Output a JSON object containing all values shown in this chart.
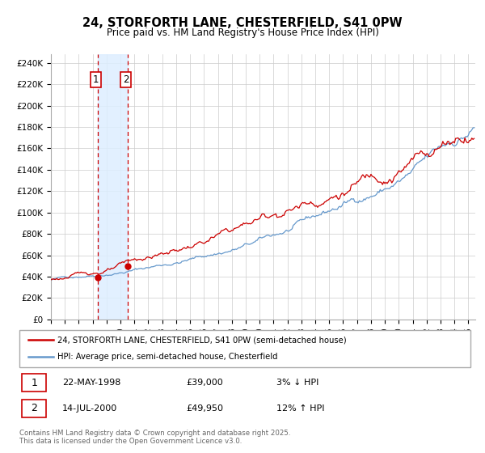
{
  "title": "24, STORFORTH LANE, CHESTERFIELD, S41 0PW",
  "subtitle": "Price paid vs. HM Land Registry's House Price Index (HPI)",
  "yticks": [
    0,
    20000,
    40000,
    60000,
    80000,
    100000,
    120000,
    140000,
    160000,
    180000,
    200000,
    220000,
    240000
  ],
  "ytick_labels": [
    "£0",
    "£20K",
    "£40K",
    "£60K",
    "£80K",
    "£100K",
    "£120K",
    "£140K",
    "£160K",
    "£180K",
    "£200K",
    "£220K",
    "£240K"
  ],
  "xmin": 1995.0,
  "xmax": 2025.5,
  "ymin": 0,
  "ymax": 248000,
  "transaction1_date": 1998.38,
  "transaction1_price": 39000,
  "transaction2_date": 2000.53,
  "transaction2_price": 49950,
  "shaded_region_start": 1998.38,
  "shaded_region_end": 2000.53,
  "red_line_color": "#cc0000",
  "blue_line_color": "#6699cc",
  "shaded_color": "#ddeeff",
  "dashed_line_color": "#cc0000",
  "grid_color": "#cccccc",
  "legend_line1": "24, STORFORTH LANE, CHESTERFIELD, S41 0PW (semi-detached house)",
  "legend_line2": "HPI: Average price, semi-detached house, Chesterfield",
  "table_row1_num": "1",
  "table_row1_date": "22-MAY-1998",
  "table_row1_price": "£39,000",
  "table_row1_hpi": "3% ↓ HPI",
  "table_row2_num": "2",
  "table_row2_date": "14-JUL-2000",
  "table_row2_price": "£49,950",
  "table_row2_hpi": "12% ↑ HPI",
  "footer": "Contains HM Land Registry data © Crown copyright and database right 2025.\nThis data is licensed under the Open Government Licence v3.0.",
  "background_color": "#ffffff"
}
